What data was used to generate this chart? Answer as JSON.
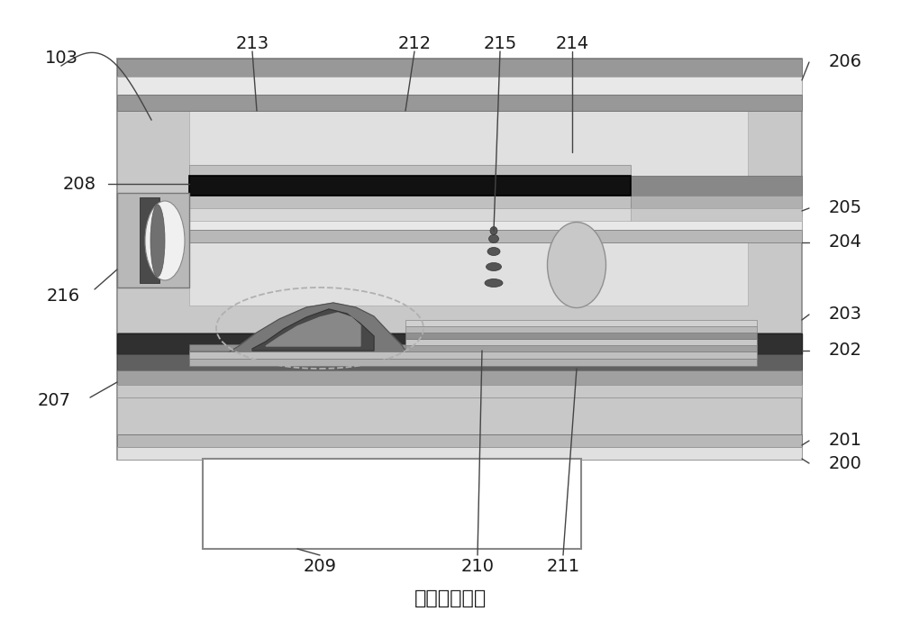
{
  "bg_color": "#ffffff",
  "title": "（现有技术）",
  "title_fontsize": 16,
  "fig_width": 10.0,
  "fig_height": 7.09,
  "colors": {
    "light_gray": "#d4d4d4",
    "medium_gray": "#b8b8b8",
    "dark_gray": "#808080",
    "darker_gray": "#606060",
    "very_dark": "#303030",
    "black": "#111111",
    "white": "#ffffff",
    "off_white": "#f0f0f0",
    "panel_outer": "#c8c8c8",
    "panel_inner": "#e0e0e0",
    "stripe_dark": "#989898",
    "stripe_light": "#e8e8e8",
    "tft_dark": "#484848",
    "tft_mid": "#686868",
    "layer_a": "#a8a8a8",
    "layer_b": "#c0c0c0",
    "layer_c": "#909090"
  }
}
